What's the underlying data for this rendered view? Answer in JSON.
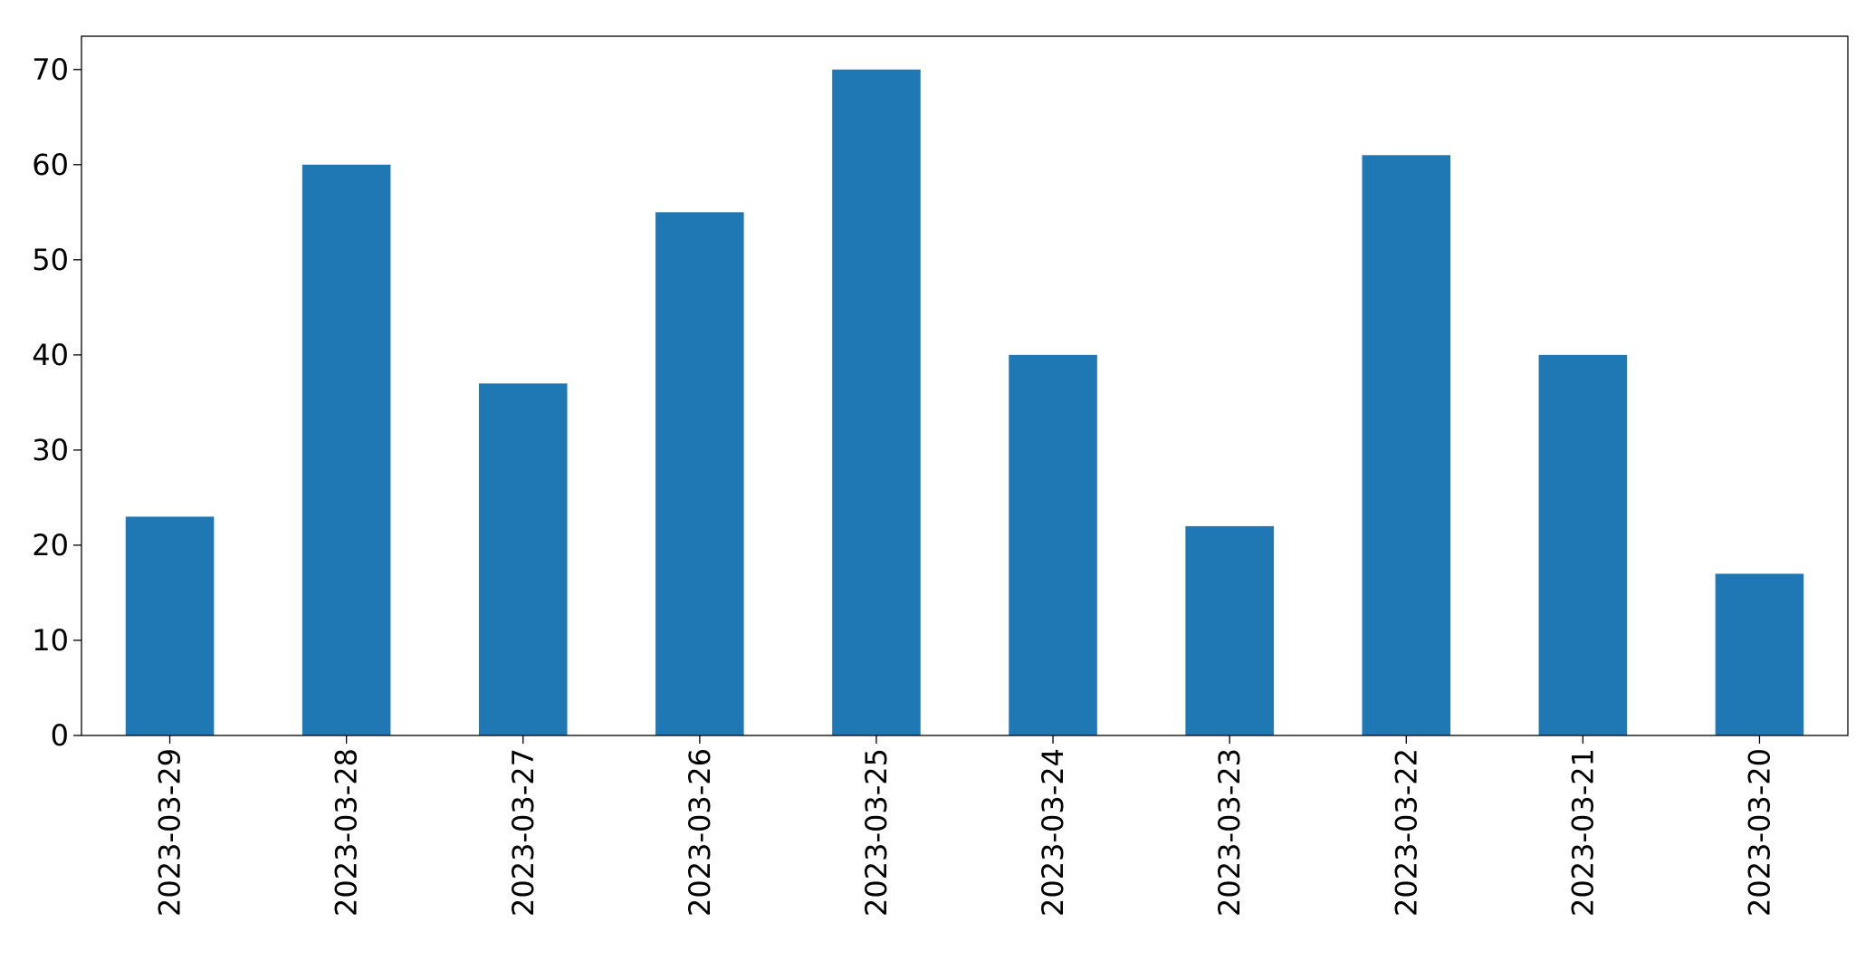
{
  "chart_data": {
    "type": "bar",
    "categories": [
      "2023-03-29",
      "2023-03-28",
      "2023-03-27",
      "2023-03-26",
      "2023-03-25",
      "2023-03-24",
      "2023-03-23",
      "2023-03-22",
      "2023-03-21",
      "2023-03-20"
    ],
    "values": [
      23,
      60,
      37,
      55,
      70,
      40,
      22,
      61,
      40,
      17
    ],
    "color": "#1f77b4",
    "ylim": [
      0,
      73.5
    ],
    "yticks": [
      0,
      10,
      20,
      30,
      40,
      50,
      60,
      70
    ],
    "grid": false
  }
}
